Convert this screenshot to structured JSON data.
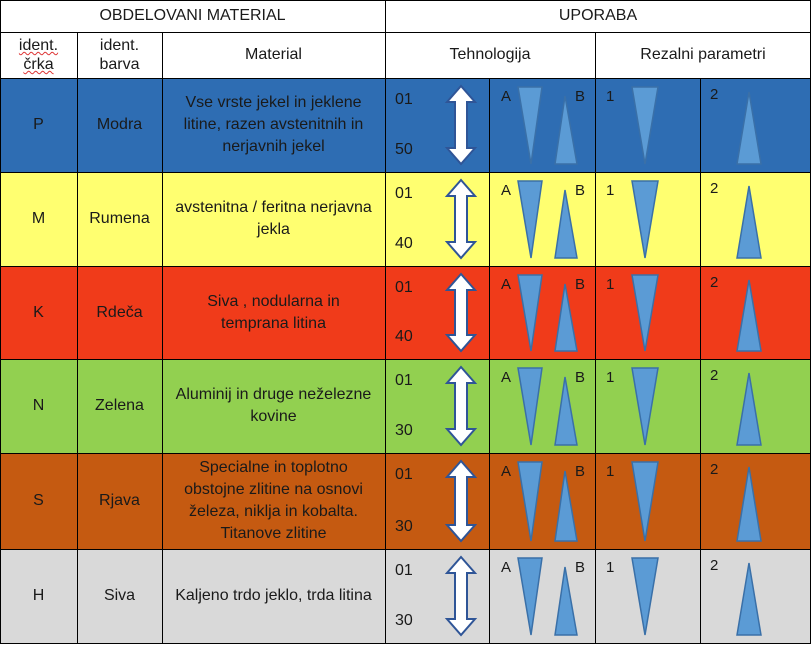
{
  "header": {
    "group_material": "OBDELOVANI MATERIAL",
    "group_usage": "UPORABA",
    "col_letter_line1": "ident.",
    "col_letter_line2": "črka",
    "col_color_line1": "ident.",
    "col_color_line2": "barva",
    "col_material": "Material",
    "col_technology": "Tehnologija",
    "col_cutting": "Rezalni parametri"
  },
  "labels": {
    "a": "A",
    "b": "B",
    "one": "1",
    "two": "2"
  },
  "rows": [
    {
      "letter": "P",
      "color_name": "Modra",
      "material": "Vse vrste jekel in jeklene litine, razen avstenitnih in nerjavnih jekel",
      "range_from": "01",
      "range_to": "50",
      "bg": "#2e6db3"
    },
    {
      "letter": "M",
      "color_name": "Rumena",
      "material": "avstenitna / feritna nerjavna jekla",
      "range_from": "01",
      "range_to": "40",
      "bg": "#ffff70"
    },
    {
      "letter": "K",
      "color_name": "Rdeča",
      "material": "Siva , nodularna in temprana litina",
      "range_from": "01",
      "range_to": "40",
      "bg": "#f03b1a"
    },
    {
      "letter": "N",
      "color_name": "Zelena",
      "material": "Aluminij in druge neželezne kovine",
      "range_from": "01",
      "range_to": "30",
      "bg": "#92d050"
    },
    {
      "letter": "S",
      "color_name": "Rjava",
      "material": "Specialne in toplotno obstojne zlitine na osnovi železa, niklja in kobalta. Titanove zlitine",
      "range_from": "01",
      "range_to": "30",
      "bg": "#c55a11"
    },
    {
      "letter": "H",
      "color_name": "Siva",
      "material": "Kaljeno trdo jeklo, trda litina",
      "range_from": "01",
      "range_to": "30",
      "bg": "#d9d9d9"
    }
  ],
  "colors": {
    "triangle_fill": "#5b9bd5",
    "triangle_stroke": "#3a70a8",
    "grid": "#000000",
    "arrow_stroke": "#2f5597"
  }
}
